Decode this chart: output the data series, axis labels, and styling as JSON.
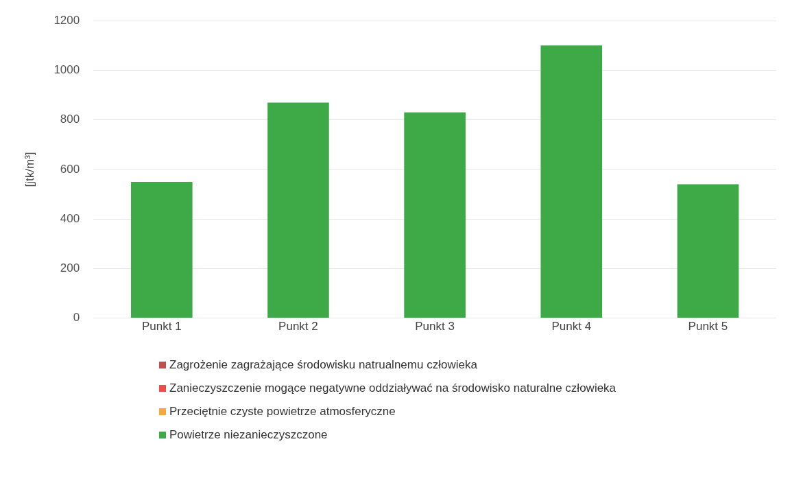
{
  "chart_data": {
    "type": "bar",
    "stacked": true,
    "ylabel": "[jtk/m³]",
    "categories": [
      "Punkt 1",
      "Punkt 2",
      "Punkt 3",
      "Punkt 4",
      "Punkt 5"
    ],
    "series": [
      {
        "name": "Zagrożenie zagrażające środowisku natrualnemu człowieka",
        "color": "#c0504d",
        "values": [
          0,
          0,
          0,
          0,
          0
        ]
      },
      {
        "name": "Zanieczyszczenie mogące negatywne oddziaływać na środowisko naturalne człowieka",
        "color": "#e8514a",
        "values": [
          0,
          0,
          0,
          0,
          0
        ]
      },
      {
        "name": "Przeciętnie czyste powietrze atmosferyczne",
        "color": "#f5a742",
        "values": [
          0,
          0,
          0,
          0,
          0
        ]
      },
      {
        "name": "Powietrze niezanieczyszczone",
        "color": "#3daa47",
        "values": [
          550,
          870,
          830,
          1100,
          540
        ]
      }
    ],
    "ylim": [
      0,
      1200
    ],
    "yticks": [
      0,
      200,
      400,
      600,
      800,
      1000,
      1200
    ],
    "grid": "y",
    "legend": "bottom"
  }
}
